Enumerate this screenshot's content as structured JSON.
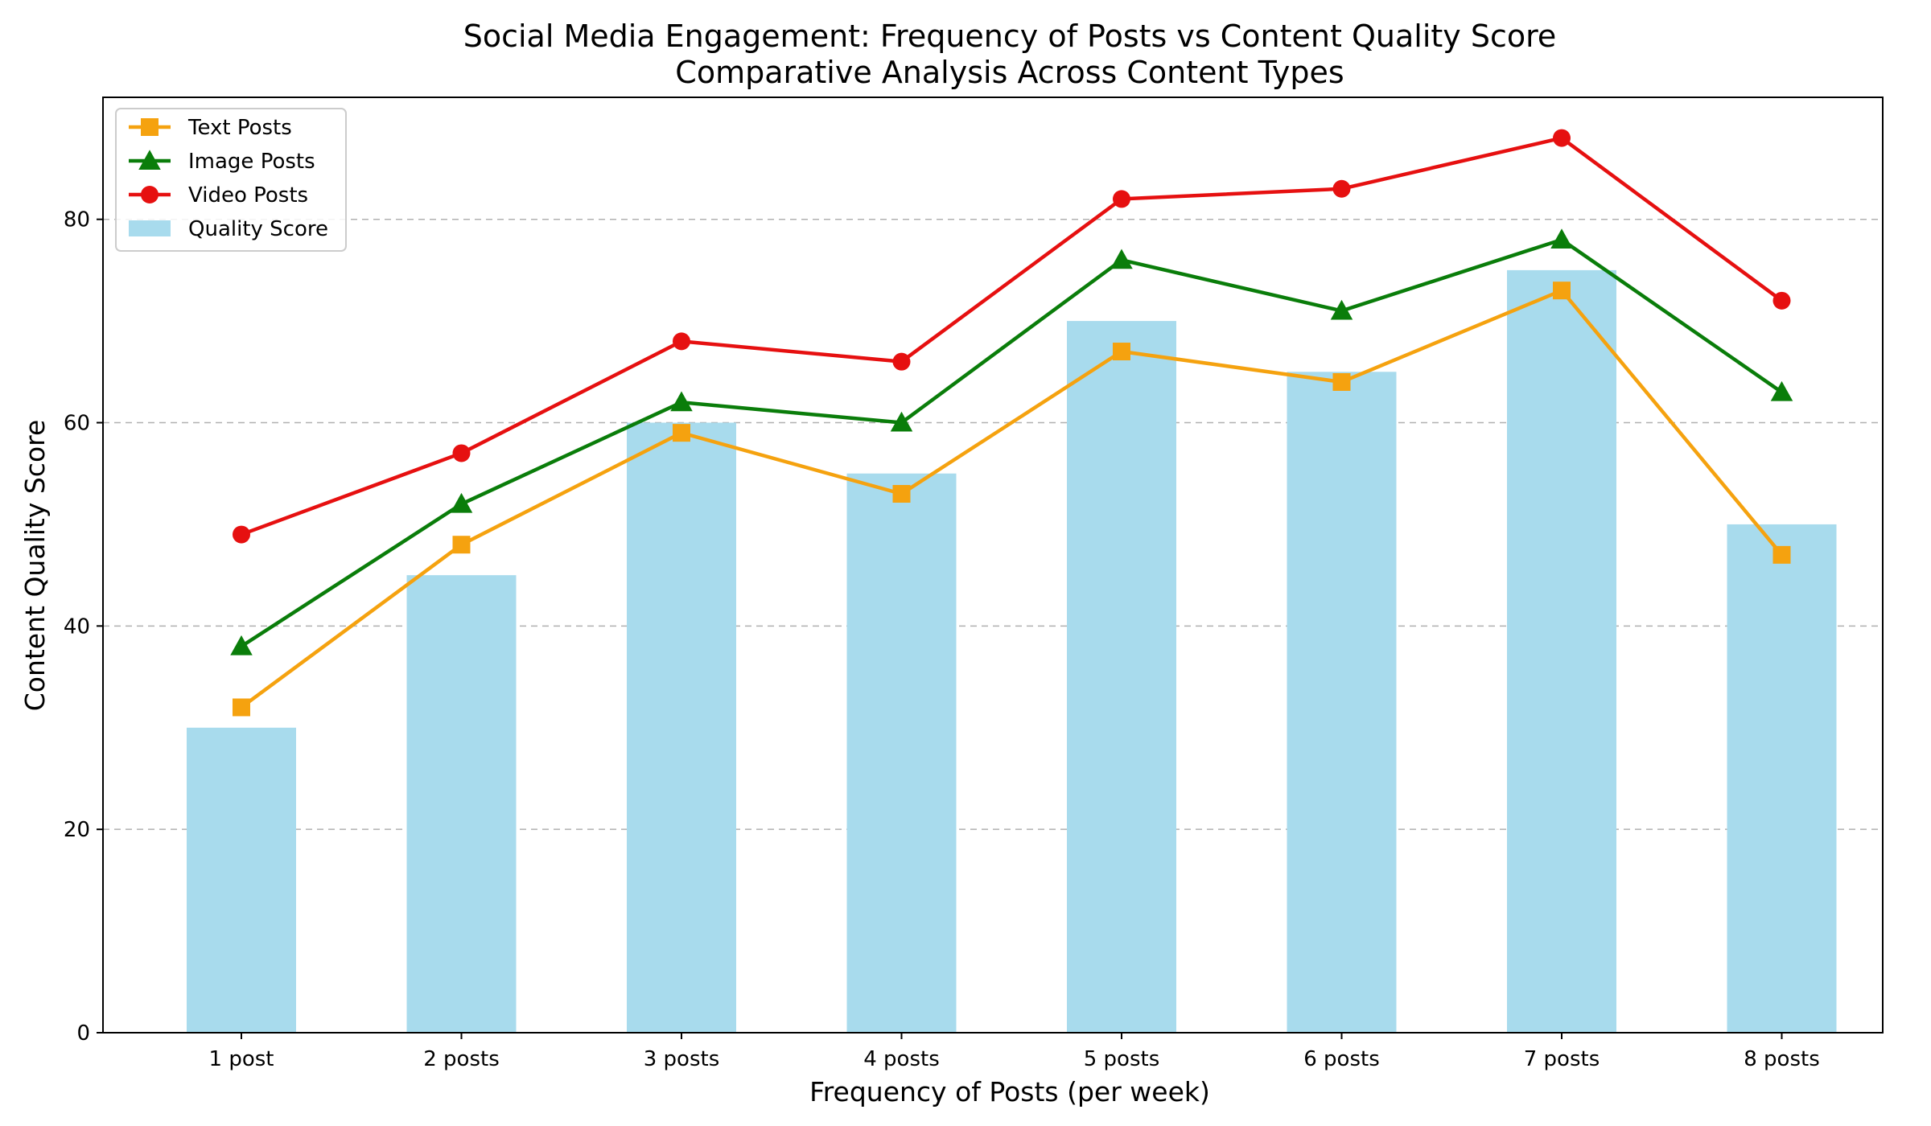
{
  "chart_data": {
    "type": "bar",
    "title": "Social Media Engagement: Frequency of Posts vs Content Quality Score",
    "subtitle": "Comparative Analysis Across Content Types",
    "xlabel": "Frequency of Posts (per week)",
    "ylabel": "Content Quality Score",
    "categories": [
      "1 post",
      "2 posts",
      "3 posts",
      "4 posts",
      "5 posts",
      "6 posts",
      "7 posts",
      "8 posts"
    ],
    "ylim": [
      0,
      92
    ],
    "yticks": [
      0,
      20,
      40,
      60,
      80
    ],
    "grid": "horizontal dashed",
    "legend_position": "top-left",
    "bars": {
      "name": "Quality Score",
      "color": "#a8dbed",
      "values": [
        30,
        45,
        60,
        55,
        70,
        65,
        75,
        50
      ]
    },
    "series": [
      {
        "name": "Text Posts",
        "type": "line",
        "color": "#f5a20f",
        "marker": "square",
        "values": [
          32,
          48,
          59,
          53,
          67,
          64,
          73,
          47
        ]
      },
      {
        "name": "Image Posts",
        "type": "line",
        "color": "#0a7d0a",
        "marker": "triangle",
        "values": [
          38,
          52,
          62,
          60,
          76,
          71,
          78,
          63
        ]
      },
      {
        "name": "Video Posts",
        "type": "line",
        "color": "#e61010",
        "marker": "circle",
        "values": [
          49,
          57,
          68,
          66,
          82,
          83,
          88,
          72
        ]
      }
    ]
  }
}
